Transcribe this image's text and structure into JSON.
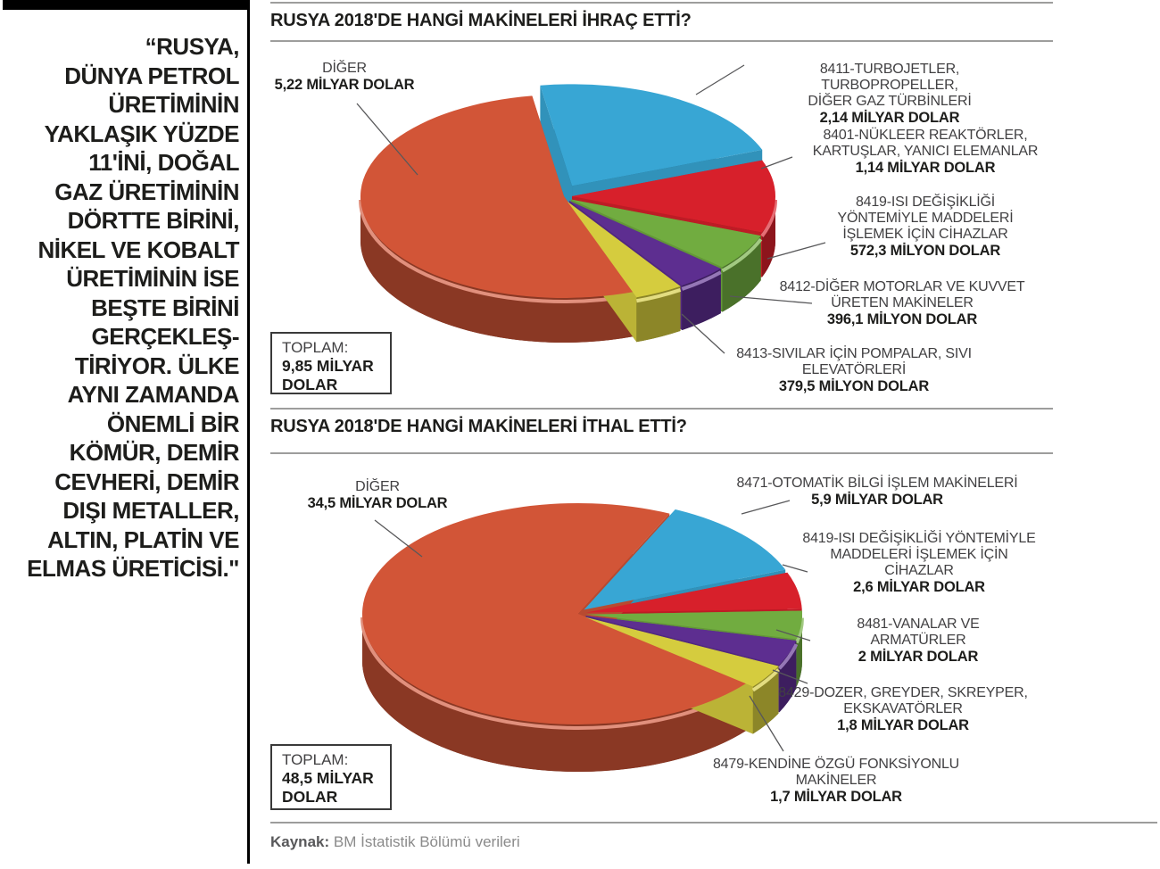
{
  "sidebar": {
    "quote": "“RUSYA,\nDÜNYA PETROL\nÜRETİMİNİN\nYAKLAŞIK YÜZDE\n11'İNİ, DOĞAL\nGAZ ÜRETİMİNİN\nDÖRTTE BİRİNİ,\nNİKEL VE KOBALT\nÜRETİMİNİN İSE\nBEŞTE BİRİNİ\nGERÇEKLEŞ-\nTİRİYOR. ÜLKE\nAYNI ZAMANDA\nÖNEMLİ BİR\nKÖMÜR, DEMİR\nCEVHERİ, DEMİR\nDIŞI METALLER,\nALTIN, PLATİN VE\nELMAS ÜRETİCİSİ.\""
  },
  "chart_data": [
    {
      "type": "pie",
      "title": "RUSYA 2018'DE HANGİ MAKİNELERİ İHRAÇ ETTİ?",
      "unit": "USD",
      "total_label": "TOPLAM:",
      "total_lines": "9,85 MİLYAR\nDOLAR",
      "total_value_billion_usd": 9.85,
      "legend_position": "callout-labels",
      "segments": [
        {
          "code": "8411",
          "label_lines": "8411-TURBOJETLER, TURBOPROPELLER,\nDİĞER GAZ TÜRBİNLERİ",
          "value_label": "2,14 MİLYAR DOLAR",
          "value_billion_usd": 2.14,
          "color": "#38a6d4"
        },
        {
          "code": "8401",
          "label_lines": "8401-NÜKLEER REAKTÖRLER,\nKARTUŞLAR, YANICI ELEMANLAR",
          "value_label": "1,14 MİLYAR DOLAR",
          "value_billion_usd": 1.14,
          "color": "#d7202b"
        },
        {
          "code": "8419",
          "label_lines": "8419-ISI DEĞİŞİKLİĞİ\nYÖNTEMİYLE MADDELERİ\nİŞLEMEK İÇİN CİHAZLAR",
          "value_label": "572,3 MİLYON DOLAR",
          "value_billion_usd": 0.5723,
          "color": "#71ac40"
        },
        {
          "code": "8412",
          "label_lines": "8412-DİĞER MOTORLAR VE KUVVET\nÜRETEN MAKİNELER",
          "value_label": "396,1 MİLYON DOLAR",
          "value_billion_usd": 0.3961,
          "color": "#5d2e90"
        },
        {
          "code": "8413",
          "label_lines": "8413-SIVILAR İÇİN POMPALAR, SIVI\nELEVATÖRLERİ",
          "value_label": "379,5 MİLYON DOLAR",
          "value_billion_usd": 0.3795,
          "color": "#d5cc3e"
        },
        {
          "code": "DIGER",
          "label_lines": "DİĞER",
          "value_label": "5,22 MİLYAR DOLAR",
          "value_billion_usd": 5.22,
          "color": "#d25537"
        }
      ]
    },
    {
      "type": "pie",
      "title": "RUSYA 2018'DE HANGİ MAKİNELERİ İTHAL ETTİ?",
      "unit": "USD",
      "total_label": "TOPLAM:",
      "total_lines": "48,5 MİLYAR\nDOLAR",
      "total_value_billion_usd": 48.5,
      "legend_position": "callout-labels",
      "segments": [
        {
          "code": "8471",
          "label_lines": "8471-OTOMATİK BİLGİ İŞLEM MAKİNELERİ",
          "value_label": "5,9 MİLYAR DOLAR",
          "value_billion_usd": 5.9,
          "color": "#38a6d4"
        },
        {
          "code": "8419",
          "label_lines": "8419-ISI DEĞİŞİKLİĞİ YÖNTEMİYLE\nMADDELERİ İŞLEMEK İÇİN\nCİHAZLAR",
          "value_label": "2,6 MİLYAR DOLAR",
          "value_billion_usd": 2.6,
          "color": "#d7202b"
        },
        {
          "code": "8481",
          "label_lines": "8481-VANALAR VE\nARMATÜRLER",
          "value_label": "2 MİLYAR DOLAR",
          "value_billion_usd": 2.0,
          "color": "#71ac40"
        },
        {
          "code": "8429",
          "label_lines": "8429-DOZER, GREYDER, SKREYPER,\nEKSKAVATÖRLER",
          "value_label": "1,8 MİLYAR DOLAR",
          "value_billion_usd": 1.8,
          "color": "#5d2e90"
        },
        {
          "code": "8479",
          "label_lines": "8479-KENDİNE ÖZGÜ FONKSİYONLU\nMAKİNELER",
          "value_label": "1,7 MİLYAR DOLAR",
          "value_billion_usd": 1.7,
          "color": "#d5cc3e"
        },
        {
          "code": "DIGER",
          "label_lines": "DİĞER",
          "value_label": "34,5 MİLYAR DOLAR",
          "value_billion_usd": 34.5,
          "color": "#d25537"
        }
      ]
    }
  ],
  "source": {
    "prefix": "Kaynak:",
    "text": "BM İstatistik Bölümü verileri"
  }
}
